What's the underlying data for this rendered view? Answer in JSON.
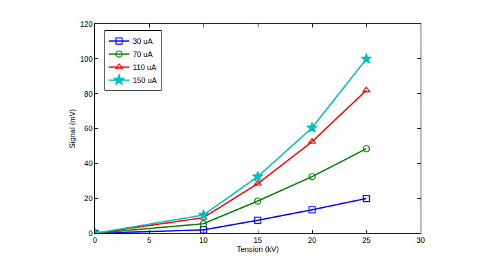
{
  "chart_data": {
    "type": "line",
    "x_label": "Tension (kV)",
    "y_label": "Signal (mV)",
    "x": [
      0,
      10,
      15,
      20,
      25
    ],
    "series": [
      {
        "name": "30 uA",
        "color": "#0000ff",
        "marker": "square",
        "values": [
          0,
          2,
          7.5,
          13.5,
          20
        ]
      },
      {
        "name": "70 uA",
        "color": "#008000",
        "marker": "circle",
        "values": [
          0,
          5.5,
          18.5,
          32.5,
          48.5
        ]
      },
      {
        "name": "110 uA",
        "color": "#ff0000",
        "marker": "triangle",
        "values": [
          0,
          9,
          28.5,
          52.5,
          82
        ]
      },
      {
        "name": "150 uA",
        "color": "#00bfbf",
        "marker": "star",
        "values": [
          0,
          10.5,
          32.5,
          60.5,
          100
        ]
      }
    ],
    "xlim": [
      0,
      30
    ],
    "xticks": [
      0,
      5,
      10,
      15,
      20,
      25,
      30
    ],
    "ylim": [
      0,
      120
    ],
    "yticks": [
      0,
      20,
      40,
      60,
      80,
      100,
      120
    ],
    "grid": false,
    "legend": "upper left"
  }
}
